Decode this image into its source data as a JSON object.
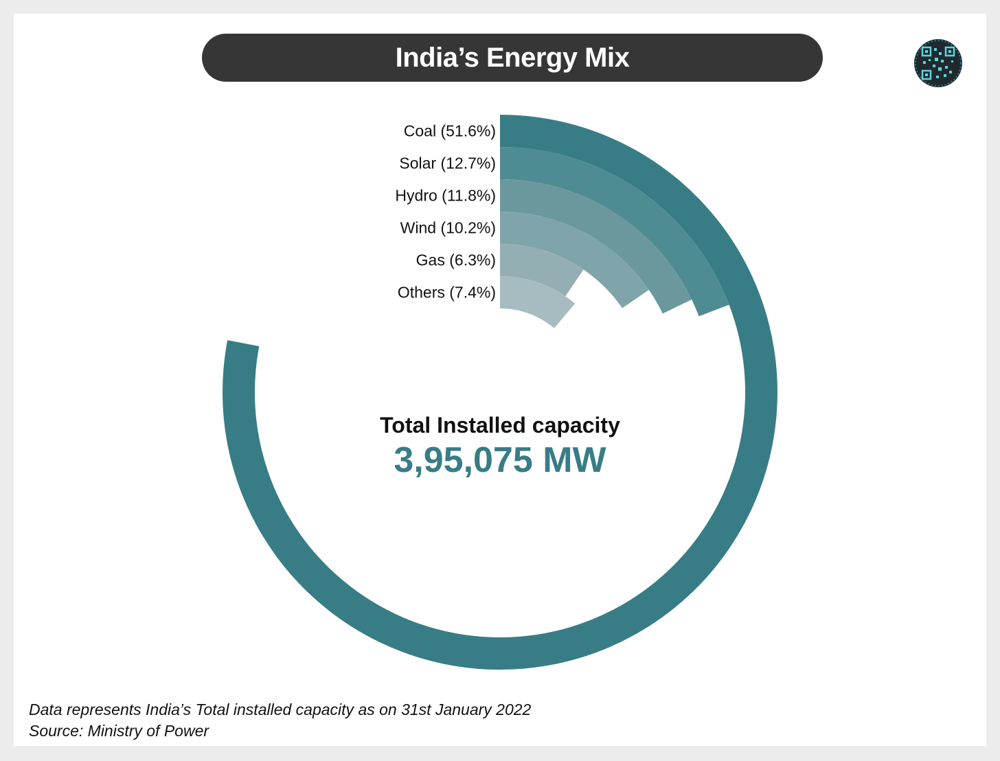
{
  "title": "India’s Energy Mix",
  "logo": {
    "icon": "qr-badge-icon",
    "color": "#2f7f86"
  },
  "chart_data": {
    "type": "radial-bar",
    "categories": [
      "Coal",
      "Solar",
      "Hydro",
      "Wind",
      "Gas",
      "Others"
    ],
    "values": [
      51.6,
      12.7,
      11.8,
      10.2,
      6.3,
      7.4
    ],
    "labels": [
      "Coal (51.6%)",
      "Solar (12.7%)",
      "Hydro (11.8%)",
      "Wind (10.2%)",
      "Gas (6.3%)",
      "Others (7.4%)"
    ],
    "colors": [
      "#387d86",
      "#4f8b92",
      "#6a989d",
      "#7fa4a9",
      "#94afb4",
      "#a7bcc1"
    ],
    "unit": "%"
  },
  "center": {
    "title": "Total Installed capacity",
    "value": "3,95,075 MW",
    "value_color": "#387d86"
  },
  "footnotes": {
    "note": "Data represents India’s Total installed capacity as on 31st January 2022",
    "source": "Source: Ministry of Power"
  }
}
